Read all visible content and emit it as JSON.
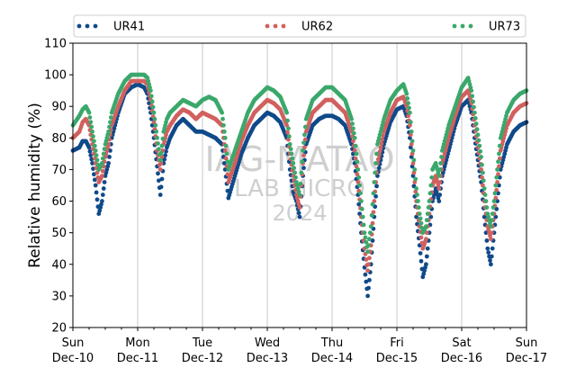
{
  "watermark": {
    "line1": "IAG-MATAO",
    "line2": "LAB MICRO",
    "line3": "2024",
    "color": "#cfcfcf"
  },
  "chart_data": {
    "type": "scatter",
    "ylabel": "Relative humidity (%)",
    "xlabel": "",
    "ylim": [
      20,
      110
    ],
    "yticks": [
      20,
      30,
      40,
      50,
      60,
      70,
      80,
      90,
      100,
      110
    ],
    "x_unit": "day",
    "xlim": [
      0,
      7
    ],
    "xticks": [
      {
        "day": 0,
        "weekday": "Sun",
        "date": "Dec-10"
      },
      {
        "day": 1,
        "weekday": "Mon",
        "date": "Dec-11"
      },
      {
        "day": 2,
        "weekday": "Tue",
        "date": "Dec-12"
      },
      {
        "day": 3,
        "weekday": "Wed",
        "date": "Dec-13"
      },
      {
        "day": 4,
        "weekday": "Thu",
        "date": "Dec-14"
      },
      {
        "day": 5,
        "weekday": "Fri",
        "date": "Dec-15"
      },
      {
        "day": 6,
        "weekday": "Sat",
        "date": "Dec-16"
      },
      {
        "day": 7,
        "weekday": "Sun",
        "date": "Dec-17"
      }
    ],
    "grid": "vertical",
    "legend_position": "top",
    "series": [
      {
        "name": "UR41",
        "color": "#0f4a8a",
        "points": [
          [
            0.0,
            76
          ],
          [
            0.1,
            77
          ],
          [
            0.15,
            79
          ],
          [
            0.2,
            79
          ],
          [
            0.25,
            77
          ],
          [
            0.3,
            72
          ],
          [
            0.35,
            65
          ],
          [
            0.4,
            56
          ],
          [
            0.45,
            60
          ],
          [
            0.5,
            68
          ],
          [
            0.55,
            72
          ],
          [
            0.6,
            80
          ],
          [
            0.7,
            88
          ],
          [
            0.8,
            94
          ],
          [
            0.9,
            96
          ],
          [
            1.0,
            97
          ],
          [
            1.1,
            96
          ],
          [
            1.15,
            94
          ],
          [
            1.2,
            88
          ],
          [
            1.25,
            80
          ],
          [
            1.3,
            71
          ],
          [
            1.35,
            62
          ],
          [
            1.4,
            72
          ],
          [
            1.45,
            77
          ],
          [
            1.5,
            80
          ],
          [
            1.6,
            84
          ],
          [
            1.7,
            86
          ],
          [
            1.8,
            84
          ],
          [
            1.9,
            82
          ],
          [
            2.0,
            82
          ],
          [
            2.1,
            81
          ],
          [
            2.2,
            80
          ],
          [
            2.3,
            78
          ],
          [
            2.35,
            70
          ],
          [
            2.4,
            61
          ],
          [
            2.5,
            68
          ],
          [
            2.6,
            75
          ],
          [
            2.7,
            80
          ],
          [
            2.8,
            84
          ],
          [
            2.9,
            86
          ],
          [
            3.0,
            88
          ],
          [
            3.1,
            87
          ],
          [
            3.2,
            85
          ],
          [
            3.3,
            80
          ],
          [
            3.35,
            70
          ],
          [
            3.4,
            63
          ],
          [
            3.45,
            60
          ],
          [
            3.5,
            55
          ],
          [
            3.55,
            68
          ],
          [
            3.6,
            78
          ],
          [
            3.7,
            84
          ],
          [
            3.8,
            86
          ],
          [
            3.9,
            87
          ],
          [
            4.0,
            87
          ],
          [
            4.1,
            86
          ],
          [
            4.2,
            84
          ],
          [
            4.3,
            78
          ],
          [
            4.35,
            72
          ],
          [
            4.4,
            62
          ],
          [
            4.45,
            50
          ],
          [
            4.5,
            39
          ],
          [
            4.55,
            30
          ],
          [
            4.6,
            40
          ],
          [
            4.65,
            55
          ],
          [
            4.7,
            68
          ],
          [
            4.8,
            78
          ],
          [
            4.9,
            85
          ],
          [
            5.0,
            89
          ],
          [
            5.1,
            90
          ],
          [
            5.15,
            87
          ],
          [
            5.2,
            80
          ],
          [
            5.25,
            68
          ],
          [
            5.3,
            55
          ],
          [
            5.35,
            46
          ],
          [
            5.4,
            36
          ],
          [
            5.45,
            40
          ],
          [
            5.5,
            50
          ],
          [
            5.55,
            60
          ],
          [
            5.6,
            64
          ],
          [
            5.65,
            60
          ],
          [
            5.7,
            68
          ],
          [
            5.8,
            76
          ],
          [
            5.9,
            84
          ],
          [
            6.0,
            90
          ],
          [
            6.1,
            92
          ],
          [
            6.15,
            88
          ],
          [
            6.2,
            80
          ],
          [
            6.3,
            66
          ],
          [
            6.35,
            55
          ],
          [
            6.4,
            45
          ],
          [
            6.45,
            40
          ],
          [
            6.5,
            50
          ],
          [
            6.55,
            60
          ],
          [
            6.6,
            70
          ],
          [
            6.7,
            78
          ],
          [
            6.8,
            82
          ],
          [
            6.9,
            84
          ],
          [
            7.0,
            85
          ]
        ]
      },
      {
        "name": "UR62",
        "color": "#d1605e",
        "points": [
          [
            0.0,
            80
          ],
          [
            0.1,
            82
          ],
          [
            0.15,
            85
          ],
          [
            0.2,
            86
          ],
          [
            0.25,
            84
          ],
          [
            0.3,
            78
          ],
          [
            0.35,
            72
          ],
          [
            0.4,
            66
          ],
          [
            0.45,
            68
          ],
          [
            0.5,
            74
          ],
          [
            0.55,
            78
          ],
          [
            0.6,
            84
          ],
          [
            0.7,
            90
          ],
          [
            0.8,
            95
          ],
          [
            0.9,
            98
          ],
          [
            1.0,
            98
          ],
          [
            1.1,
            98
          ],
          [
            1.15,
            97
          ],
          [
            1.2,
            92
          ],
          [
            1.25,
            85
          ],
          [
            1.3,
            76
          ],
          [
            1.35,
            70
          ],
          [
            1.4,
            78
          ],
          [
            1.45,
            82
          ],
          [
            1.5,
            84
          ],
          [
            1.6,
            87
          ],
          [
            1.7,
            89
          ],
          [
            1.8,
            88
          ],
          [
            1.9,
            86
          ],
          [
            2.0,
            88
          ],
          [
            2.1,
            87
          ],
          [
            2.2,
            86
          ],
          [
            2.3,
            84
          ],
          [
            2.35,
            76
          ],
          [
            2.4,
            66
          ],
          [
            2.5,
            72
          ],
          [
            2.6,
            79
          ],
          [
            2.7,
            84
          ],
          [
            2.8,
            88
          ],
          [
            2.9,
            90
          ],
          [
            3.0,
            92
          ],
          [
            3.1,
            91
          ],
          [
            3.2,
            89
          ],
          [
            3.3,
            84
          ],
          [
            3.35,
            75
          ],
          [
            3.4,
            68
          ],
          [
            3.45,
            62
          ],
          [
            3.5,
            58
          ],
          [
            3.55,
            72
          ],
          [
            3.6,
            82
          ],
          [
            3.7,
            88
          ],
          [
            3.8,
            90
          ],
          [
            3.9,
            92
          ],
          [
            4.0,
            92
          ],
          [
            4.1,
            90
          ],
          [
            4.2,
            88
          ],
          [
            4.3,
            82
          ],
          [
            4.35,
            76
          ],
          [
            4.4,
            66
          ],
          [
            4.45,
            55
          ],
          [
            4.5,
            45
          ],
          [
            4.55,
            38
          ],
          [
            4.6,
            46
          ],
          [
            4.65,
            60
          ],
          [
            4.7,
            72
          ],
          [
            4.8,
            82
          ],
          [
            4.9,
            88
          ],
          [
            5.0,
            92
          ],
          [
            5.1,
            93
          ],
          [
            5.15,
            90
          ],
          [
            5.2,
            84
          ],
          [
            5.25,
            72
          ],
          [
            5.3,
            60
          ],
          [
            5.35,
            52
          ],
          [
            5.4,
            45
          ],
          [
            5.45,
            48
          ],
          [
            5.5,
            56
          ],
          [
            5.55,
            65
          ],
          [
            5.6,
            68
          ],
          [
            5.65,
            64
          ],
          [
            5.7,
            72
          ],
          [
            5.8,
            80
          ],
          [
            5.9,
            87
          ],
          [
            6.0,
            93
          ],
          [
            6.1,
            95
          ],
          [
            6.15,
            91
          ],
          [
            6.2,
            84
          ],
          [
            6.3,
            70
          ],
          [
            6.35,
            60
          ],
          [
            6.4,
            52
          ],
          [
            6.45,
            48
          ],
          [
            6.5,
            56
          ],
          [
            6.55,
            66
          ],
          [
            6.6,
            76
          ],
          [
            6.7,
            84
          ],
          [
            6.8,
            88
          ],
          [
            6.9,
            90
          ],
          [
            7.0,
            91
          ]
        ]
      },
      {
        "name": "UR73",
        "color": "#3aa86b",
        "points": [
          [
            0.0,
            84
          ],
          [
            0.1,
            87
          ],
          [
            0.15,
            89
          ],
          [
            0.2,
            90
          ],
          [
            0.25,
            88
          ],
          [
            0.3,
            82
          ],
          [
            0.35,
            76
          ],
          [
            0.4,
            70
          ],
          [
            0.45,
            72
          ],
          [
            0.5,
            78
          ],
          [
            0.55,
            82
          ],
          [
            0.6,
            88
          ],
          [
            0.7,
            94
          ],
          [
            0.8,
            98
          ],
          [
            0.9,
            100
          ],
          [
            1.0,
            100
          ],
          [
            1.1,
            100
          ],
          [
            1.15,
            99
          ],
          [
            1.2,
            95
          ],
          [
            1.25,
            88
          ],
          [
            1.3,
            80
          ],
          [
            1.35,
            73
          ],
          [
            1.4,
            82
          ],
          [
            1.45,
            86
          ],
          [
            1.5,
            88
          ],
          [
            1.6,
            90
          ],
          [
            1.7,
            92
          ],
          [
            1.8,
            91
          ],
          [
            1.9,
            90
          ],
          [
            2.0,
            92
          ],
          [
            2.1,
            93
          ],
          [
            2.2,
            92
          ],
          [
            2.3,
            88
          ],
          [
            2.35,
            80
          ],
          [
            2.4,
            70
          ],
          [
            2.5,
            76
          ],
          [
            2.6,
            82
          ],
          [
            2.7,
            88
          ],
          [
            2.8,
            92
          ],
          [
            2.9,
            94
          ],
          [
            3.0,
            96
          ],
          [
            3.1,
            95
          ],
          [
            3.2,
            93
          ],
          [
            3.3,
            88
          ],
          [
            3.35,
            78
          ],
          [
            3.4,
            72
          ],
          [
            3.45,
            66
          ],
          [
            3.5,
            62
          ],
          [
            3.55,
            76
          ],
          [
            3.6,
            86
          ],
          [
            3.7,
            92
          ],
          [
            3.8,
            94
          ],
          [
            3.9,
            96
          ],
          [
            4.0,
            96
          ],
          [
            4.1,
            94
          ],
          [
            4.2,
            92
          ],
          [
            4.3,
            86
          ],
          [
            4.35,
            80
          ],
          [
            4.4,
            70
          ],
          [
            4.45,
            60
          ],
          [
            4.5,
            50
          ],
          [
            4.55,
            44
          ],
          [
            4.6,
            52
          ],
          [
            4.65,
            66
          ],
          [
            4.7,
            78
          ],
          [
            4.8,
            86
          ],
          [
            4.9,
            92
          ],
          [
            5.0,
            95
          ],
          [
            5.1,
            97
          ],
          [
            5.15,
            94
          ],
          [
            5.2,
            88
          ],
          [
            5.25,
            76
          ],
          [
            5.3,
            64
          ],
          [
            5.35,
            56
          ],
          [
            5.4,
            50
          ],
          [
            5.45,
            52
          ],
          [
            5.5,
            60
          ],
          [
            5.55,
            70
          ],
          [
            5.6,
            72
          ],
          [
            5.65,
            68
          ],
          [
            5.7,
            76
          ],
          [
            5.8,
            84
          ],
          [
            5.9,
            90
          ],
          [
            6.0,
            96
          ],
          [
            6.1,
            99
          ],
          [
            6.15,
            95
          ],
          [
            6.2,
            88
          ],
          [
            6.3,
            74
          ],
          [
            6.35,
            64
          ],
          [
            6.4,
            56
          ],
          [
            6.45,
            52
          ],
          [
            6.5,
            60
          ],
          [
            6.55,
            70
          ],
          [
            6.6,
            80
          ],
          [
            6.7,
            88
          ],
          [
            6.8,
            92
          ],
          [
            6.9,
            94
          ],
          [
            7.0,
            95
          ]
        ]
      }
    ]
  }
}
